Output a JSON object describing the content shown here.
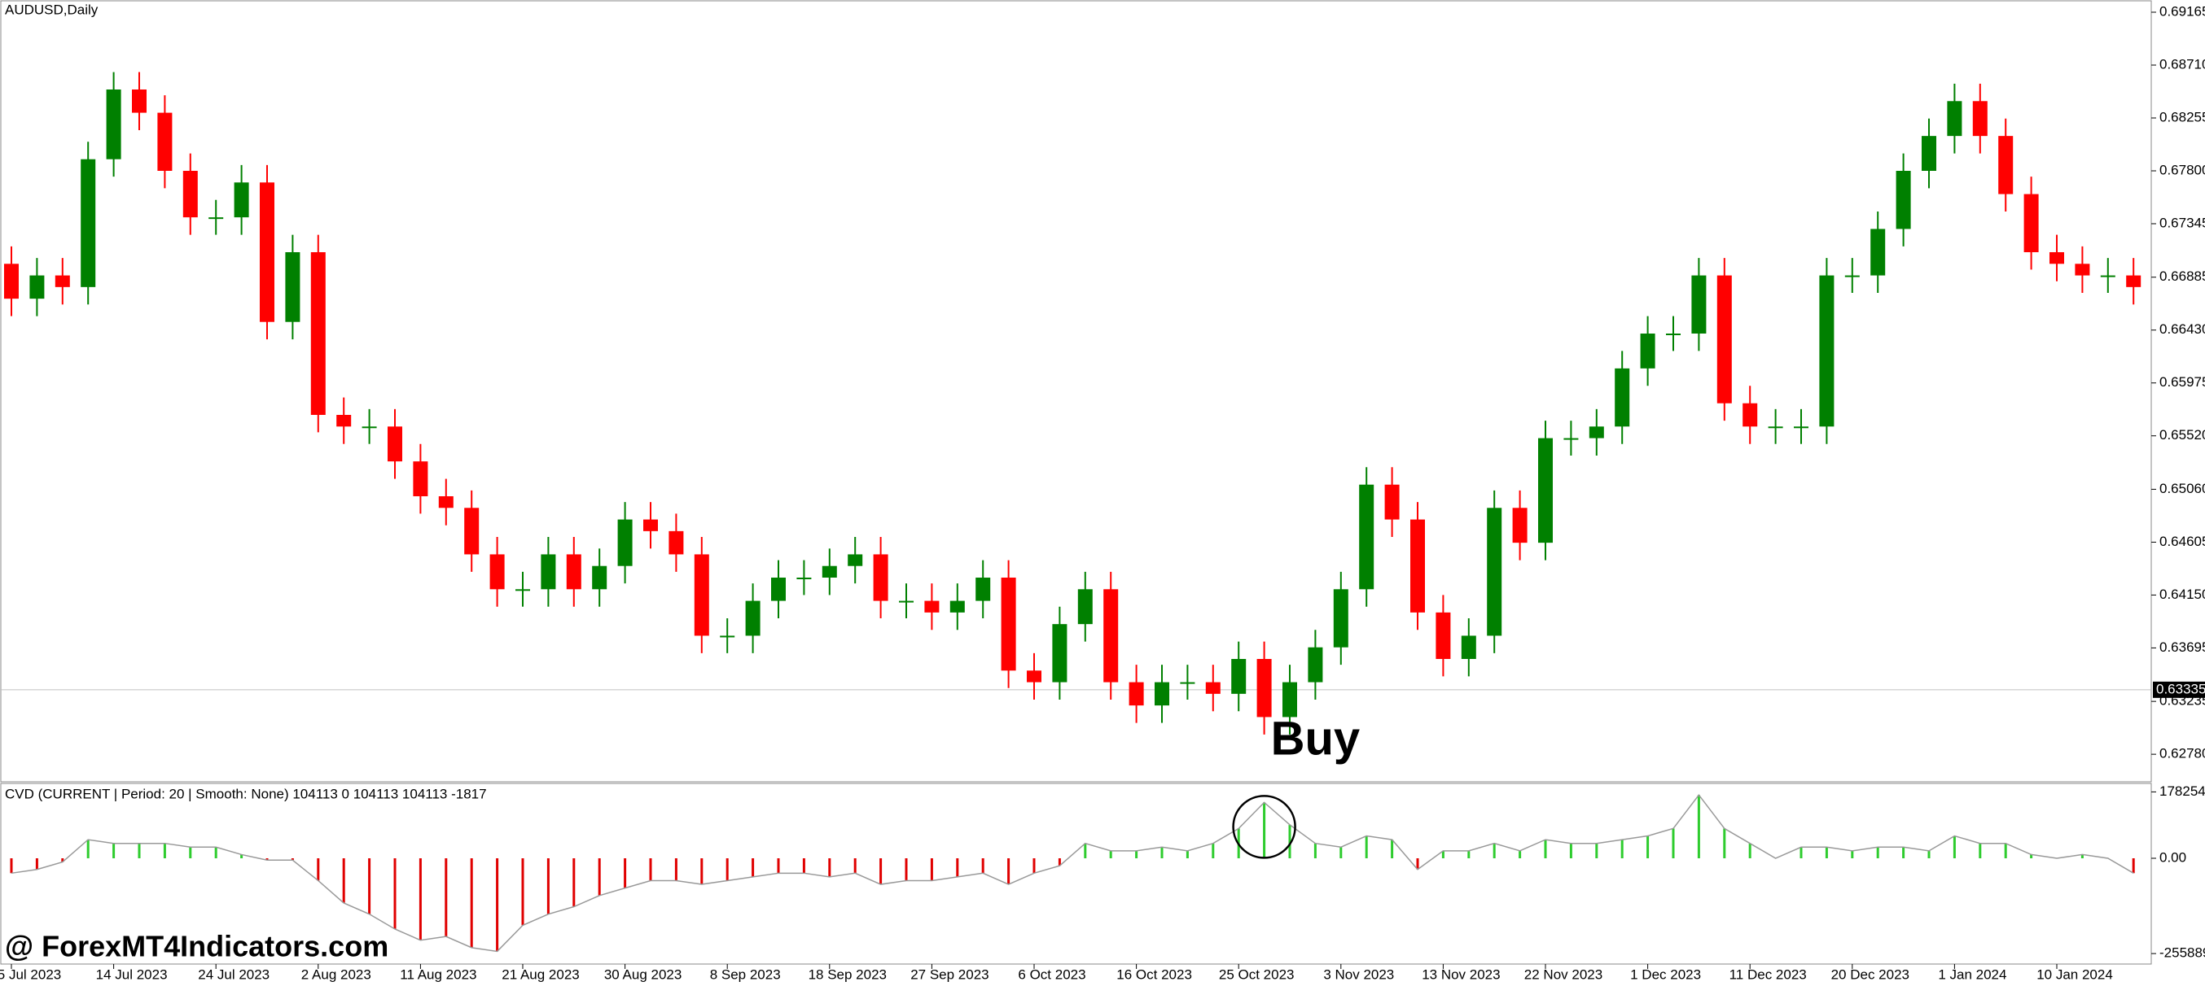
{
  "chart_data": [
    {
      "type": "candlestick",
      "title": "AUDUSD,Daily",
      "categories": [
        "5 Jul 2023",
        null,
        null,
        null,
        "14 Jul 2023",
        null,
        null,
        null,
        "24 Jul 2023",
        null,
        null,
        null,
        "2 Aug 2023",
        null,
        null,
        null,
        "11 Aug 2023",
        null,
        null,
        null,
        "21 Aug 2023",
        null,
        null,
        null,
        "30 Aug 2023",
        null,
        null,
        null,
        "8 Sep 2023",
        null,
        null,
        null,
        "18 Sep 2023",
        null,
        null,
        null,
        "27 Sep 2023",
        null,
        null,
        null,
        "6 Oct 2023",
        null,
        null,
        null,
        "16 Oct 2023",
        null,
        null,
        null,
        "25 Oct 2023",
        null,
        null,
        null,
        "3 Nov 2023",
        null,
        null,
        null,
        "13 Nov 2023",
        null,
        null,
        null,
        "22 Nov 2023",
        null,
        null,
        null,
        "1 Dec 2023",
        null,
        null,
        null,
        "11 Dec 2023",
        null,
        null,
        null,
        "20 Dec 2023",
        null,
        null,
        null,
        "1 Jan 2024",
        null,
        null,
        null,
        "10 Jan 2024",
        null,
        null,
        null
      ],
      "open": [
        0.67,
        0.667,
        0.669,
        0.668,
        0.679,
        0.685,
        0.683,
        0.678,
        0.674,
        0.674,
        0.677,
        0.665,
        0.671,
        0.657,
        0.656,
        0.656,
        0.653,
        0.65,
        0.649,
        0.645,
        0.642,
        0.642,
        0.645,
        0.642,
        0.644,
        0.648,
        0.647,
        0.645,
        0.638,
        0.638,
        0.641,
        0.643,
        0.643,
        0.644,
        0.645,
        0.641,
        0.641,
        0.64,
        0.641,
        0.643,
        0.635,
        0.634,
        0.639,
        0.642,
        0.634,
        0.632,
        0.634,
        0.634,
        0.633,
        0.636,
        0.631,
        0.634,
        0.637,
        0.642,
        0.651,
        0.648,
        0.64,
        0.636,
        0.638,
        0.649,
        0.646,
        0.655,
        0.655,
        0.656,
        0.661,
        0.664,
        0.664,
        0.669,
        0.658,
        0.656,
        0.656,
        0.656,
        0.669,
        0.669,
        0.673,
        0.678,
        0.681,
        0.684,
        0.681,
        0.676,
        0.671,
        0.67,
        0.669,
        0.669
      ],
      "high": [
        0.6715,
        0.6705,
        0.6705,
        0.6805,
        0.6865,
        0.6865,
        0.6845,
        0.6795,
        0.6755,
        0.6785,
        0.6785,
        0.6725,
        0.6725,
        0.6585,
        0.6575,
        0.6575,
        0.6545,
        0.6515,
        0.6505,
        0.6465,
        0.6435,
        0.6465,
        0.6465,
        0.6455,
        0.6495,
        0.6495,
        0.6485,
        0.6465,
        0.6395,
        0.6425,
        0.6445,
        0.6445,
        0.6455,
        0.6465,
        0.6465,
        0.6425,
        0.6425,
        0.6425,
        0.6445,
        0.6445,
        0.6365,
        0.6405,
        0.6435,
        0.6435,
        0.6355,
        0.6355,
        0.6355,
        0.6355,
        0.6375,
        0.6375,
        0.6355,
        0.6385,
        0.6435,
        0.6525,
        0.6525,
        0.6495,
        0.6415,
        0.6395,
        0.6505,
        0.6505,
        0.6565,
        0.6565,
        0.6575,
        0.6625,
        0.6655,
        0.6655,
        0.6705,
        0.6705,
        0.6595,
        0.6575,
        0.6575,
        0.6705,
        0.6705,
        0.6745,
        0.6795,
        0.6825,
        0.6855,
        0.6855,
        0.6825,
        0.6775,
        0.6725,
        0.6715,
        0.6705,
        0.6705
      ],
      "low": [
        0.6655,
        0.6655,
        0.6665,
        0.6665,
        0.6775,
        0.6815,
        0.6765,
        0.6725,
        0.6725,
        0.6725,
        0.6635,
        0.6635,
        0.6555,
        0.6545,
        0.6545,
        0.6515,
        0.6485,
        0.6475,
        0.6435,
        0.6405,
        0.6405,
        0.6405,
        0.6405,
        0.6405,
        0.6425,
        0.6455,
        0.6435,
        0.6365,
        0.6365,
        0.6365,
        0.6395,
        0.6415,
        0.6415,
        0.6425,
        0.6395,
        0.6395,
        0.6385,
        0.6385,
        0.6395,
        0.6335,
        0.6325,
        0.6325,
        0.6375,
        0.6325,
        0.6305,
        0.6305,
        0.6325,
        0.6315,
        0.6315,
        0.6295,
        0.6295,
        0.6325,
        0.6355,
        0.6405,
        0.6465,
        0.6385,
        0.6345,
        0.6345,
        0.6365,
        0.6445,
        0.6445,
        0.6535,
        0.6535,
        0.6545,
        0.6595,
        0.6625,
        0.6625,
        0.6565,
        0.6545,
        0.6545,
        0.6545,
        0.6545,
        0.6675,
        0.6675,
        0.6715,
        0.6765,
        0.6795,
        0.6795,
        0.6745,
        0.6695,
        0.6685,
        0.6675,
        0.6675,
        0.6665
      ],
      "close": [
        0.667,
        0.669,
        0.668,
        0.679,
        0.685,
        0.683,
        0.678,
        0.674,
        0.674,
        0.677,
        0.665,
        0.671,
        0.657,
        0.656,
        0.656,
        0.653,
        0.65,
        0.649,
        0.645,
        0.642,
        0.642,
        0.645,
        0.642,
        0.644,
        0.648,
        0.647,
        0.645,
        0.638,
        0.638,
        0.641,
        0.643,
        0.643,
        0.644,
        0.645,
        0.641,
        0.641,
        0.64,
        0.641,
        0.643,
        0.635,
        0.634,
        0.639,
        0.642,
        0.634,
        0.632,
        0.634,
        0.634,
        0.633,
        0.636,
        0.631,
        0.634,
        0.637,
        0.642,
        0.651,
        0.648,
        0.64,
        0.636,
        0.638,
        0.649,
        0.646,
        0.655,
        0.655,
        0.656,
        0.661,
        0.664,
        0.664,
        0.669,
        0.658,
        0.656,
        0.656,
        0.656,
        0.669,
        0.669,
        0.673,
        0.678,
        0.681,
        0.684,
        0.681,
        0.676,
        0.671,
        0.67,
        0.669,
        0.669,
        0.668
      ],
      "up_color": "#008000",
      "down_color": "#ff0000",
      "ylim": [
        0.6255,
        0.6927
      ],
      "yticks": [
        0.69165,
        {
          "value": 0.6871,
          "label": "0.68710"
        },
        0.68255,
        {
          "value": 0.678,
          "label": "0.67800"
        },
        0.67345,
        0.66885,
        {
          "value": 0.6643,
          "label": "0.66430"
        },
        0.65975,
        {
          "value": 0.6552,
          "label": "0.65520"
        },
        {
          "value": 0.6506,
          "label": "0.65060"
        },
        0.64605,
        {
          "value": 0.6415,
          "label": "0.64150"
        },
        0.63695,
        0.63235,
        {
          "value": 0.6278,
          "label": "0.62780"
        }
      ],
      "current_price": 0.63335,
      "annotations": [
        "Buy"
      ]
    },
    {
      "type": "bar",
      "title": "CVD (CURRENT | Period: 20 | Smooth: None) 104113 0 104113 104113 -1817",
      "values": [
        -40000,
        -30000,
        -10000,
        50000,
        40000,
        40000,
        40000,
        30000,
        30000,
        10000,
        -5000,
        -5000,
        -60000,
        -120000,
        -150000,
        -190000,
        -220000,
        -210000,
        -240000,
        -250000,
        -180000,
        -150000,
        -130000,
        -100000,
        -80000,
        -60000,
        -60000,
        -70000,
        -60000,
        -50000,
        -40000,
        -40000,
        -50000,
        -40000,
        -70000,
        -60000,
        -60000,
        -50000,
        -40000,
        -70000,
        -40000,
        -20000,
        40000,
        20000,
        20000,
        30000,
        20000,
        40000,
        80000,
        150000,
        90000,
        40000,
        30000,
        60000,
        50000,
        -30000,
        20000,
        20000,
        40000,
        20000,
        50000,
        40000,
        40000,
        50000,
        60000,
        80000,
        170000,
        80000,
        40000,
        0,
        30000,
        30000,
        20000,
        30000,
        30000,
        20000,
        60000,
        40000,
        40000,
        10000,
        0,
        10000,
        0,
        -40000
      ],
      "up_color": "#2ecc2e",
      "down_color": "#e00000",
      "ylim": [
        -284000,
        201000
      ],
      "yticks": [
        178254,
        {
          "value": 0,
          "label": "0.00"
        },
        -255889
      ]
    }
  ],
  "watermark": "@ ForexMT4Indicators.com"
}
